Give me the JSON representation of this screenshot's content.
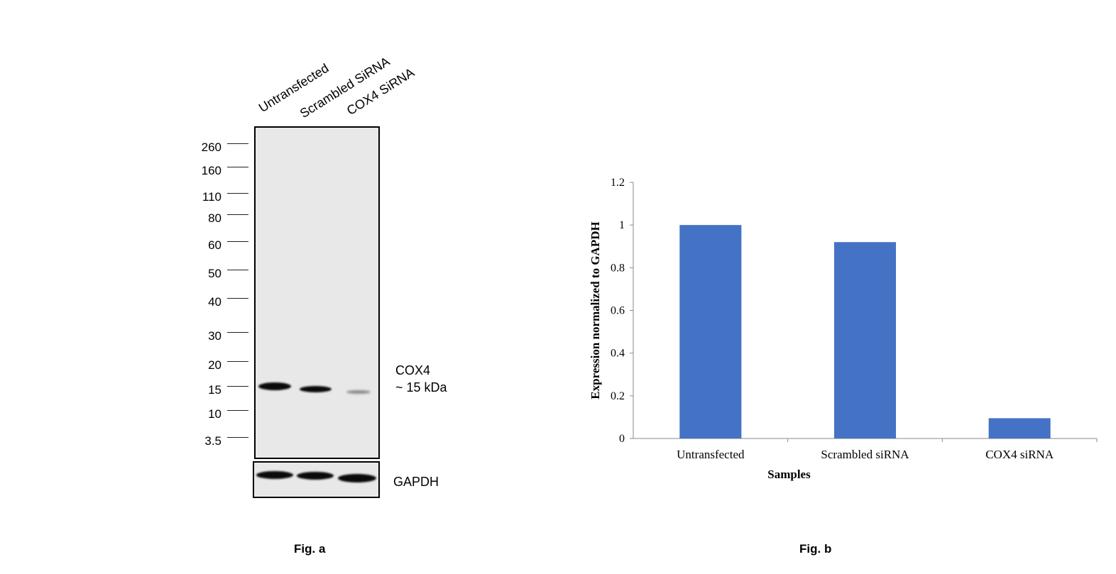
{
  "figure_a": {
    "lanes": [
      "Untransfected",
      "Scrambled SiRNA",
      "COX4 SiRNA"
    ],
    "markers": [
      "260",
      "160",
      "110",
      "80",
      "60",
      "50",
      "40",
      "30",
      "20",
      "15",
      "10",
      "3.5"
    ],
    "target_label": "COX4",
    "target_size": "~ 15 kDa",
    "loading_control": "GAPDH",
    "band_intensity": [
      1.0,
      0.92,
      0.15
    ],
    "caption": "Fig. a"
  },
  "chart_data": {
    "type": "bar",
    "categories": [
      "Untransfected",
      "Scrambled siRNA",
      "COX4 siRNA"
    ],
    "values": [
      1.0,
      0.92,
      0.095
    ],
    "ylabel": "Expression normalized to GAPDH",
    "xlabel": "Samples",
    "ylim": [
      0,
      1.2
    ],
    "yticks": [
      "0",
      "0.2",
      "0.4",
      "0.6",
      "0.8",
      "1",
      "1.2"
    ],
    "grid": false,
    "bar_color": "#4472C4"
  },
  "figure_b": {
    "caption": "Fig. b"
  }
}
